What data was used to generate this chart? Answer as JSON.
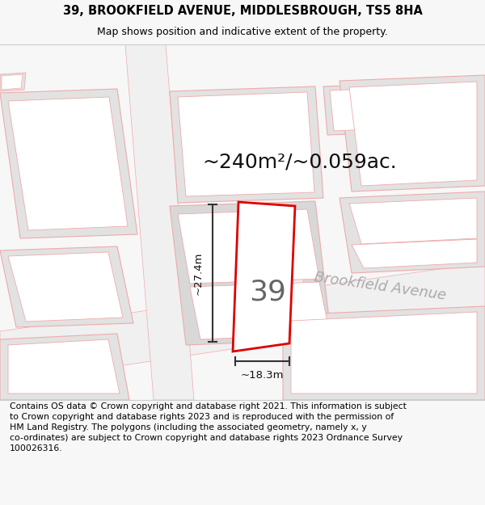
{
  "title_line1": "39, BROOKFIELD AVENUE, MIDDLESBROUGH, TS5 8HA",
  "title_line2": "Map shows position and indicative extent of the property.",
  "area_label": "~240m²/~0.059ac.",
  "width_label": "~18.3m",
  "height_label": "~27.4m",
  "number_label": "39",
  "road_label": "Brookfield Avenue",
  "footer_text": "Contains OS data © Crown copyright and database right 2021. This information is subject to Crown copyright and database rights 2023 and is reproduced with the permission of HM Land Registry. The polygons (including the associated geometry, namely x, y co-ordinates) are subject to Crown copyright and database rights 2023 Ordnance Survey 100026316.",
  "bg_color": "#f7f7f7",
  "map_bg": "#ffffff",
  "plot_fill": "#ffffff",
  "plot_edge": "#dd0000",
  "building_fill": "#e2e2e2",
  "ghost_edge": "#f0aaaa",
  "road_label_color": "#aaaaaa",
  "dim_color": "#333333",
  "text_color": "#111111",
  "title_fontsize": 10.5,
  "subtitle_fontsize": 9,
  "area_fontsize": 18,
  "number_fontsize": 26,
  "road_fontsize": 13,
  "footer_fontsize": 7.8,
  "dim_label_fontsize": 9.5
}
